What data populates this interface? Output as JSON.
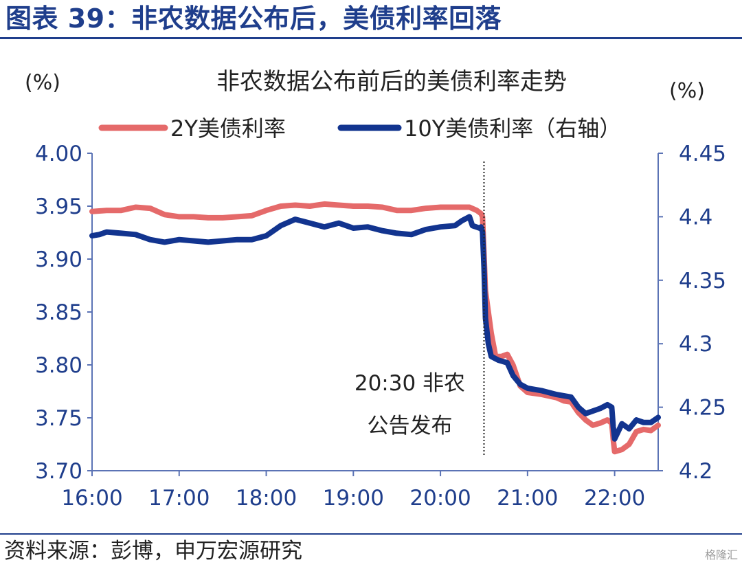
{
  "header": {
    "title": "图表 39：非农数据公布后，美债利率回落"
  },
  "footer": {
    "source": "资料来源：彭博，申万宏源研究",
    "watermark": "格隆汇"
  },
  "colors": {
    "brand": "#1f3e8c",
    "series_2y": "#e56a6a",
    "series_10y": "#12348f"
  },
  "chart_data": {
    "type": "line",
    "title": "非农数据公布前后的美债利率走势",
    "left_axis_unit": "(%)",
    "right_axis_unit": "(%)",
    "legend_position": "top",
    "grid": false,
    "x_ticks": [
      "16:00",
      "17:00",
      "18:00",
      "19:00",
      "20:00",
      "21:00",
      "22:00"
    ],
    "xlim": [
      "16:00",
      "22:30"
    ],
    "y_left_ticks": [
      "4.00",
      "3.95",
      "3.90",
      "3.85",
      "3.80",
      "3.75",
      "3.70"
    ],
    "ylim_left": [
      3.7,
      4.0
    ],
    "y_right_ticks": [
      "4.45",
      "4.4",
      "4.35",
      "4.3",
      "4.25",
      "4.2"
    ],
    "ylim_right": [
      4.2,
      4.45
    ],
    "annotation": {
      "time": "20:30",
      "line1": "20:30 非农",
      "line2": "公告发布"
    },
    "series": [
      {
        "name": "2Y美债利率",
        "axis": "left",
        "points": [
          [
            "16:00",
            3.945
          ],
          [
            "16:10",
            3.946
          ],
          [
            "16:20",
            3.946
          ],
          [
            "16:30",
            3.949
          ],
          [
            "16:40",
            3.948
          ],
          [
            "16:50",
            3.942
          ],
          [
            "17:00",
            3.94
          ],
          [
            "17:10",
            3.94
          ],
          [
            "17:20",
            3.939
          ],
          [
            "17:30",
            3.939
          ],
          [
            "17:40",
            3.94
          ],
          [
            "17:50",
            3.941
          ],
          [
            "18:00",
            3.946
          ],
          [
            "18:10",
            3.95
          ],
          [
            "18:20",
            3.951
          ],
          [
            "18:30",
            3.95
          ],
          [
            "18:40",
            3.952
          ],
          [
            "18:50",
            3.951
          ],
          [
            "19:00",
            3.95
          ],
          [
            "19:10",
            3.95
          ],
          [
            "19:20",
            3.949
          ],
          [
            "19:30",
            3.946
          ],
          [
            "19:40",
            3.946
          ],
          [
            "19:50",
            3.948
          ],
          [
            "20:00",
            3.949
          ],
          [
            "20:10",
            3.949
          ],
          [
            "20:20",
            3.949
          ],
          [
            "20:25",
            3.946
          ],
          [
            "20:28",
            3.943
          ],
          [
            "20:29",
            3.94
          ],
          [
            "20:30",
            3.905
          ],
          [
            "20:31",
            3.87
          ],
          [
            "20:33",
            3.85
          ],
          [
            "20:35",
            3.83
          ],
          [
            "20:38",
            3.808
          ],
          [
            "20:42",
            3.808
          ],
          [
            "20:46",
            3.81
          ],
          [
            "20:50",
            3.8
          ],
          [
            "20:55",
            3.78
          ],
          [
            "21:00",
            3.774
          ],
          [
            "21:10",
            3.772
          ],
          [
            "21:20",
            3.769
          ],
          [
            "21:25",
            3.766
          ],
          [
            "21:30",
            3.765
          ],
          [
            "21:35",
            3.755
          ],
          [
            "21:40",
            3.748
          ],
          [
            "21:45",
            3.743
          ],
          [
            "21:50",
            3.745
          ],
          [
            "21:55",
            3.748
          ],
          [
            "21:58",
            3.745
          ],
          [
            "21:59",
            3.73
          ],
          [
            "22:00",
            3.718
          ],
          [
            "22:05",
            3.72
          ],
          [
            "22:10",
            3.725
          ],
          [
            "22:15",
            3.737
          ],
          [
            "22:20",
            3.739
          ],
          [
            "22:25",
            3.738
          ],
          [
            "22:30",
            3.743
          ]
        ]
      },
      {
        "name": "10Y美债利率（右轴）",
        "axis": "right",
        "points": [
          [
            "16:00",
            4.385
          ],
          [
            "16:05",
            4.386
          ],
          [
            "16:10",
            4.388
          ],
          [
            "16:20",
            4.387
          ],
          [
            "16:30",
            4.386
          ],
          [
            "16:40",
            4.382
          ],
          [
            "16:50",
            4.38
          ],
          [
            "17:00",
            4.382
          ],
          [
            "17:10",
            4.381
          ],
          [
            "17:20",
            4.38
          ],
          [
            "17:30",
            4.381
          ],
          [
            "17:40",
            4.382
          ],
          [
            "17:50",
            4.382
          ],
          [
            "18:00",
            4.385
          ],
          [
            "18:10",
            4.393
          ],
          [
            "18:20",
            4.398
          ],
          [
            "18:30",
            4.395
          ],
          [
            "18:40",
            4.392
          ],
          [
            "18:50",
            4.395
          ],
          [
            "19:00",
            4.391
          ],
          [
            "19:10",
            4.392
          ],
          [
            "19:20",
            4.389
          ],
          [
            "19:30",
            4.387
          ],
          [
            "19:40",
            4.386
          ],
          [
            "19:50",
            4.39
          ],
          [
            "20:00",
            4.392
          ],
          [
            "20:10",
            4.393
          ],
          [
            "20:15",
            4.397
          ],
          [
            "20:20",
            4.4
          ],
          [
            "20:22",
            4.393
          ],
          [
            "20:27",
            4.391
          ],
          [
            "20:28",
            4.392
          ],
          [
            "20:29",
            4.388
          ],
          [
            "20:30",
            4.36
          ],
          [
            "20:31",
            4.32
          ],
          [
            "20:33",
            4.3
          ],
          [
            "20:35",
            4.29
          ],
          [
            "20:40",
            4.287
          ],
          [
            "20:46",
            4.285
          ],
          [
            "20:50",
            4.275
          ],
          [
            "20:55",
            4.268
          ],
          [
            "21:00",
            4.265
          ],
          [
            "21:10",
            4.263
          ],
          [
            "21:20",
            4.26
          ],
          [
            "21:30",
            4.258
          ],
          [
            "21:35",
            4.25
          ],
          [
            "21:40",
            4.245
          ],
          [
            "21:45",
            4.247
          ],
          [
            "21:50",
            4.249
          ],
          [
            "21:55",
            4.252
          ],
          [
            "21:58",
            4.25
          ],
          [
            "21:59",
            4.235
          ],
          [
            "22:00",
            4.225
          ],
          [
            "22:05",
            4.237
          ],
          [
            "22:10",
            4.233
          ],
          [
            "22:15",
            4.24
          ],
          [
            "22:20",
            4.238
          ],
          [
            "22:25",
            4.238
          ],
          [
            "22:30",
            4.242
          ]
        ]
      }
    ]
  }
}
